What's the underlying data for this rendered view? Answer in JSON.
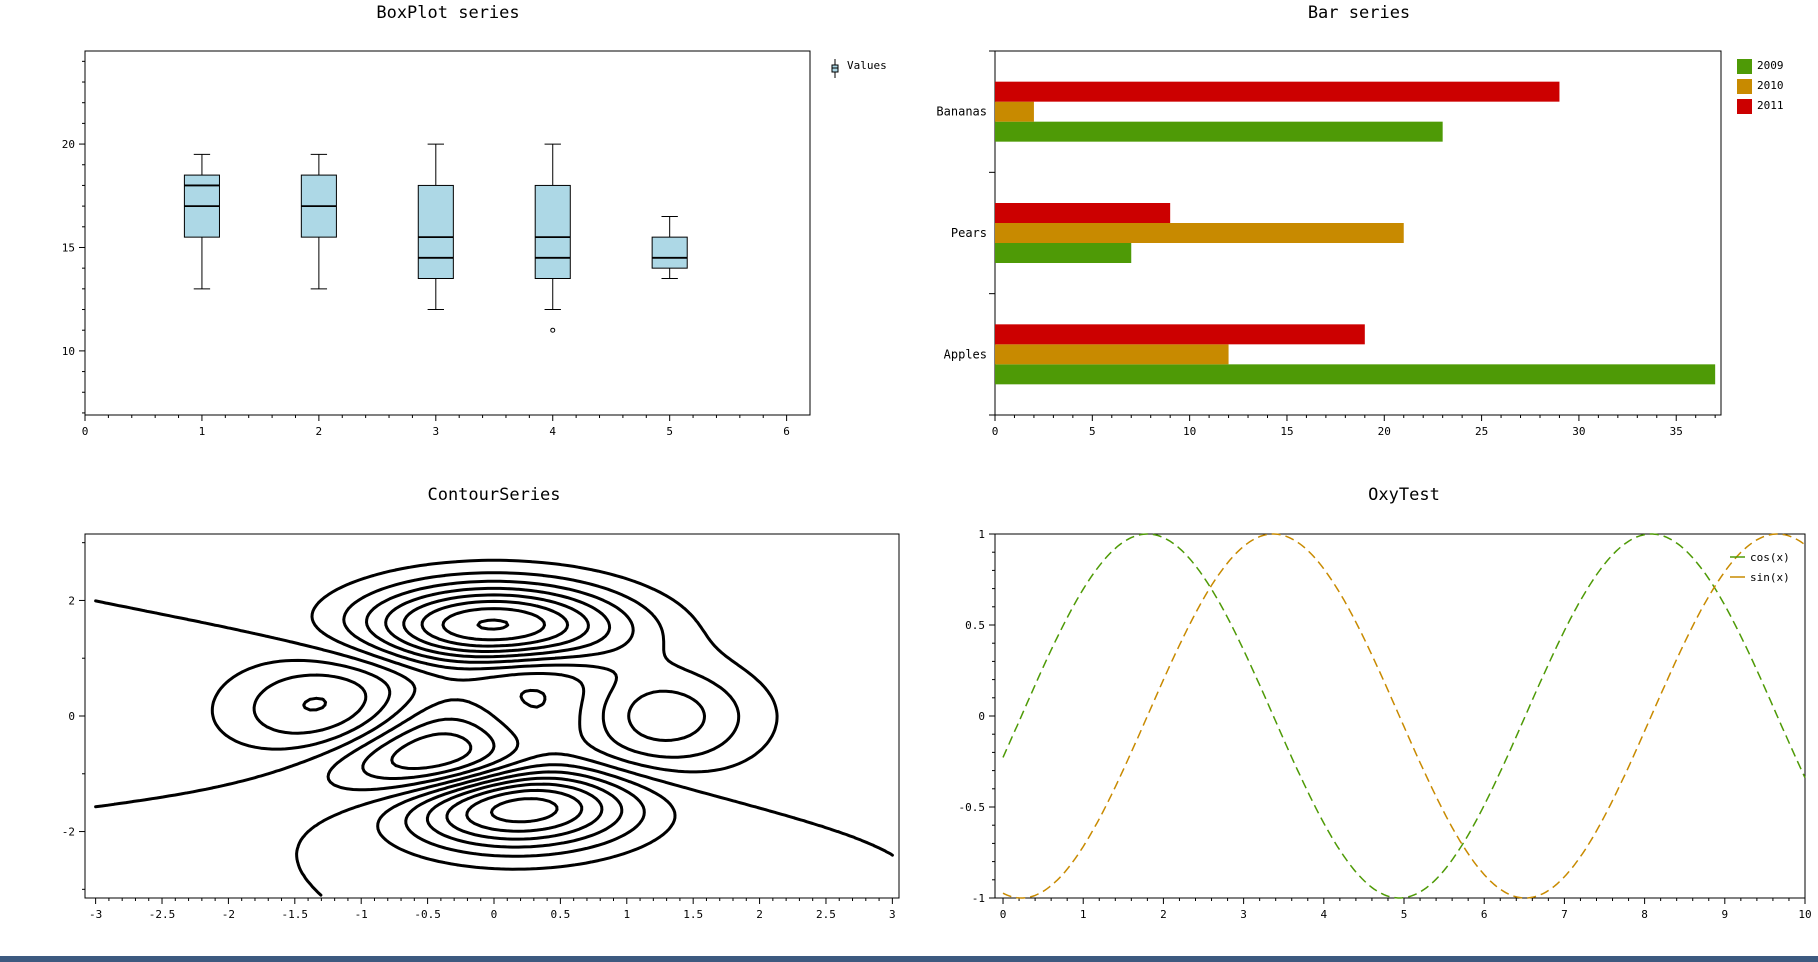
{
  "chart_data": [
    {
      "id": "boxplot",
      "type": "boxplot",
      "title": "BoxPlot series",
      "xlim": [
        0,
        6.2
      ],
      "ylim": [
        6.9,
        24.5
      ],
      "xticks": [
        0,
        1,
        2,
        3,
        4,
        5,
        6
      ],
      "yticks": [
        10,
        15,
        20
      ],
      "legend": {
        "position": "top-right-outside",
        "entries": [
          "Values"
        ]
      },
      "series": [
        {
          "name": "Values",
          "color": "#add8e6",
          "boxes": [
            {
              "x": 1,
              "lower_whisker": 13,
              "q1": 15.5,
              "median": 17,
              "q3": 18.5,
              "upper_whisker": 19.5,
              "mean": 18,
              "outliers": []
            },
            {
              "x": 2,
              "lower_whisker": 13,
              "q1": 15.5,
              "median": 17,
              "q3": 18.5,
              "upper_whisker": 19.5,
              "mean": null,
              "outliers": []
            },
            {
              "x": 3,
              "lower_whisker": 12,
              "q1": 13.5,
              "median": 14.5,
              "q3": 18,
              "upper_whisker": 20,
              "mean": 15.5,
              "outliers": []
            },
            {
              "x": 4,
              "lower_whisker": 12,
              "q1": 13.5,
              "median": 14.5,
              "q3": 18,
              "upper_whisker": 20,
              "mean": 15.5,
              "outliers": [
                11
              ]
            },
            {
              "x": 5,
              "lower_whisker": 13.5,
              "q1": 14,
              "median": 14.5,
              "q3": 15.5,
              "upper_whisker": 16.5,
              "mean": null,
              "outliers": []
            }
          ]
        }
      ]
    },
    {
      "id": "bar",
      "type": "bar",
      "orientation": "horizontal",
      "title": "Bar series",
      "categories": [
        "Apples",
        "Pears",
        "Bananas"
      ],
      "xlim": [
        0,
        37.3
      ],
      "xticks": [
        0,
        5,
        10,
        15,
        20,
        25,
        30,
        35
      ],
      "legend": {
        "position": "top-right-outside"
      },
      "series": [
        {
          "name": "2009",
          "color": "#4e9a06",
          "values": [
            37,
            7,
            23
          ]
        },
        {
          "name": "2010",
          "color": "#c88a00",
          "values": [
            12,
            21,
            2
          ]
        },
        {
          "name": "2011",
          "color": "#cc0000",
          "values": [
            19,
            9,
            29
          ]
        }
      ]
    },
    {
      "id": "contour",
      "type": "contour",
      "title": "ContourSeries",
      "function": "f(x,y) = 3(1-x)^2 e^(-x^2-(y+1)^2) - 10(x/5-x^3-y^5) e^(-x^2-y^2) - (1/3) e^(-(x+1)^2-y^2)",
      "xlim": [
        -3.08,
        3.05
      ],
      "ylim": [
        -3.15,
        3.15
      ],
      "xticks": [
        -3,
        -2.5,
        -2,
        -1.5,
        -1,
        -0.5,
        0,
        0.5,
        1,
        1.5,
        2,
        2.5,
        3
      ],
      "yticks": [
        -2,
        0,
        2
      ],
      "levels": [
        -6,
        -5,
        -4,
        -3,
        -2,
        -1,
        0,
        1,
        2,
        3,
        4,
        5,
        6,
        7,
        8
      ]
    },
    {
      "id": "lines",
      "type": "line",
      "title": "OxyTest",
      "xlim": [
        -0.1,
        10
      ],
      "ylim": [
        -1,
        1
      ],
      "xticks": [
        0,
        1,
        2,
        3,
        4,
        5,
        6,
        7,
        8,
        9,
        10
      ],
      "yticks": [
        -1,
        -0.5,
        0,
        0.5,
        1
      ],
      "legend": {
        "position": "top-right"
      },
      "series": [
        {
          "name": "cos(x)",
          "color": "#4e9a06",
          "function": "cos(x-1.8)",
          "xrange": [
            0,
            10
          ],
          "dash": "dashed"
        },
        {
          "name": "sin(x)",
          "color": "#c88a00",
          "function": "sin(x-1.8)",
          "xrange": [
            0,
            10
          ],
          "dash": "dashed"
        }
      ]
    }
  ]
}
